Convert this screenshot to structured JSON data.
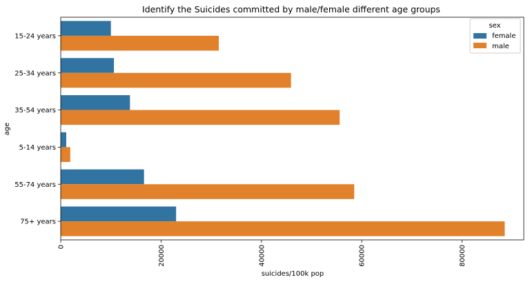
{
  "chart_data": {
    "type": "bar",
    "orientation": "horizontal",
    "title": "Identify the Suicides committed by male/female different age groups",
    "xlabel": "suicides/100k pop",
    "ylabel": "age",
    "categories": [
      "15-24 years",
      "25-34 years",
      "35-54 years",
      "5-14 years",
      "55-74 years",
      "75+ years"
    ],
    "series": [
      {
        "name": "female",
        "color": "#3274a1",
        "values": [
          10000,
          10600,
          13800,
          1100,
          16600,
          23000
        ]
      },
      {
        "name": "male",
        "color": "#e1812c",
        "values": [
          31500,
          45900,
          55600,
          1900,
          58500,
          88500
        ]
      }
    ],
    "xlim": [
      0,
      92300
    ],
    "x_ticks": [
      0,
      20000,
      40000,
      60000,
      80000
    ],
    "x_tick_labels": [
      "0",
      "20000",
      "40000",
      "60000",
      "80000"
    ],
    "grid": false,
    "legend": {
      "title": "sex",
      "position": "top-right",
      "entries": [
        "female",
        "male"
      ]
    }
  }
}
